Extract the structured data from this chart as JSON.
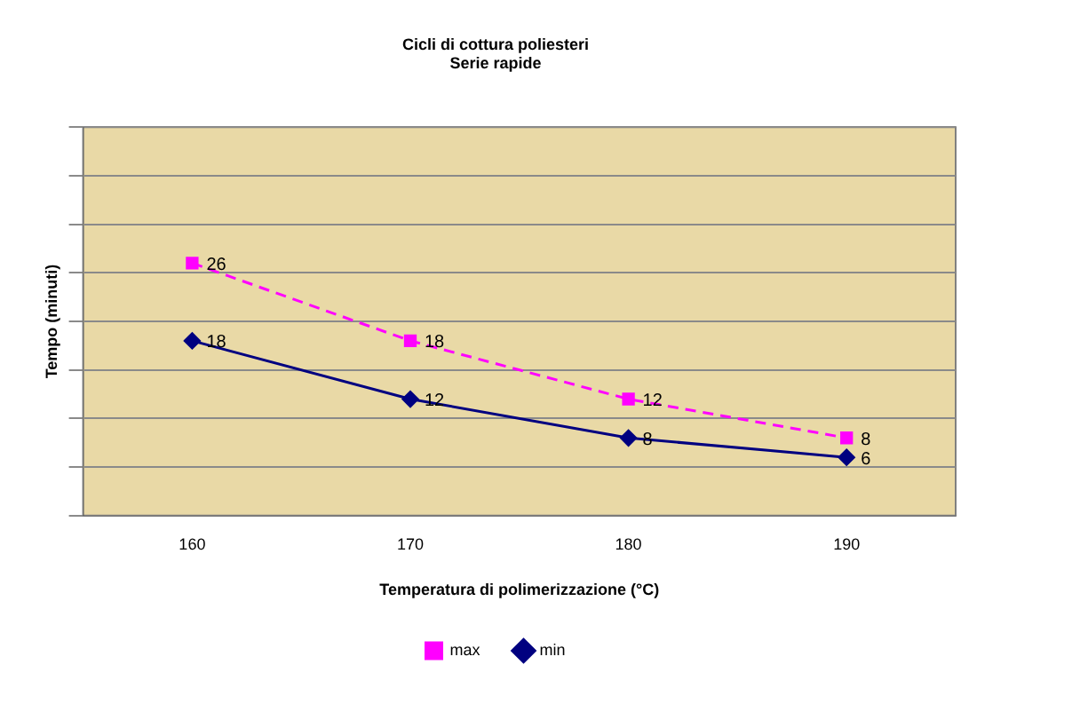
{
  "chart_data": {
    "type": "line",
    "title": "Cicli di cottura poliesteri",
    "subtitle": "Serie rapide",
    "xlabel": "Temperatura di polimerizzazione (°C)",
    "ylabel": "Tempo (minuti)",
    "categories": [
      "160",
      "170",
      "180",
      "190"
    ],
    "series": [
      {
        "name": "max",
        "color": "#ff00ff",
        "values": [
          26,
          18,
          12,
          8
        ],
        "marker": "square",
        "line_style": "dashed"
      },
      {
        "name": "min",
        "color": "#000080",
        "values": [
          18,
          12,
          8,
          6
        ],
        "marker": "diamond",
        "line_style": "solid"
      }
    ],
    "ylim": [
      0,
      40
    ],
    "yticks": [
      {
        "value": 0,
        "label": null
      },
      {
        "value": 5,
        "label": null
      },
      {
        "value": 10,
        "label": null
      },
      {
        "value": 15,
        "label": null
      },
      {
        "value": 20,
        "label": null
      },
      {
        "value": 25,
        "label": null
      },
      {
        "value": 30,
        "label": null
      },
      {
        "value": 35,
        "label": null
      },
      {
        "value": 40,
        "label": null
      }
    ],
    "grid": "y",
    "tick_labels": "x",
    "legend": "bottom",
    "data_labels": true
  }
}
